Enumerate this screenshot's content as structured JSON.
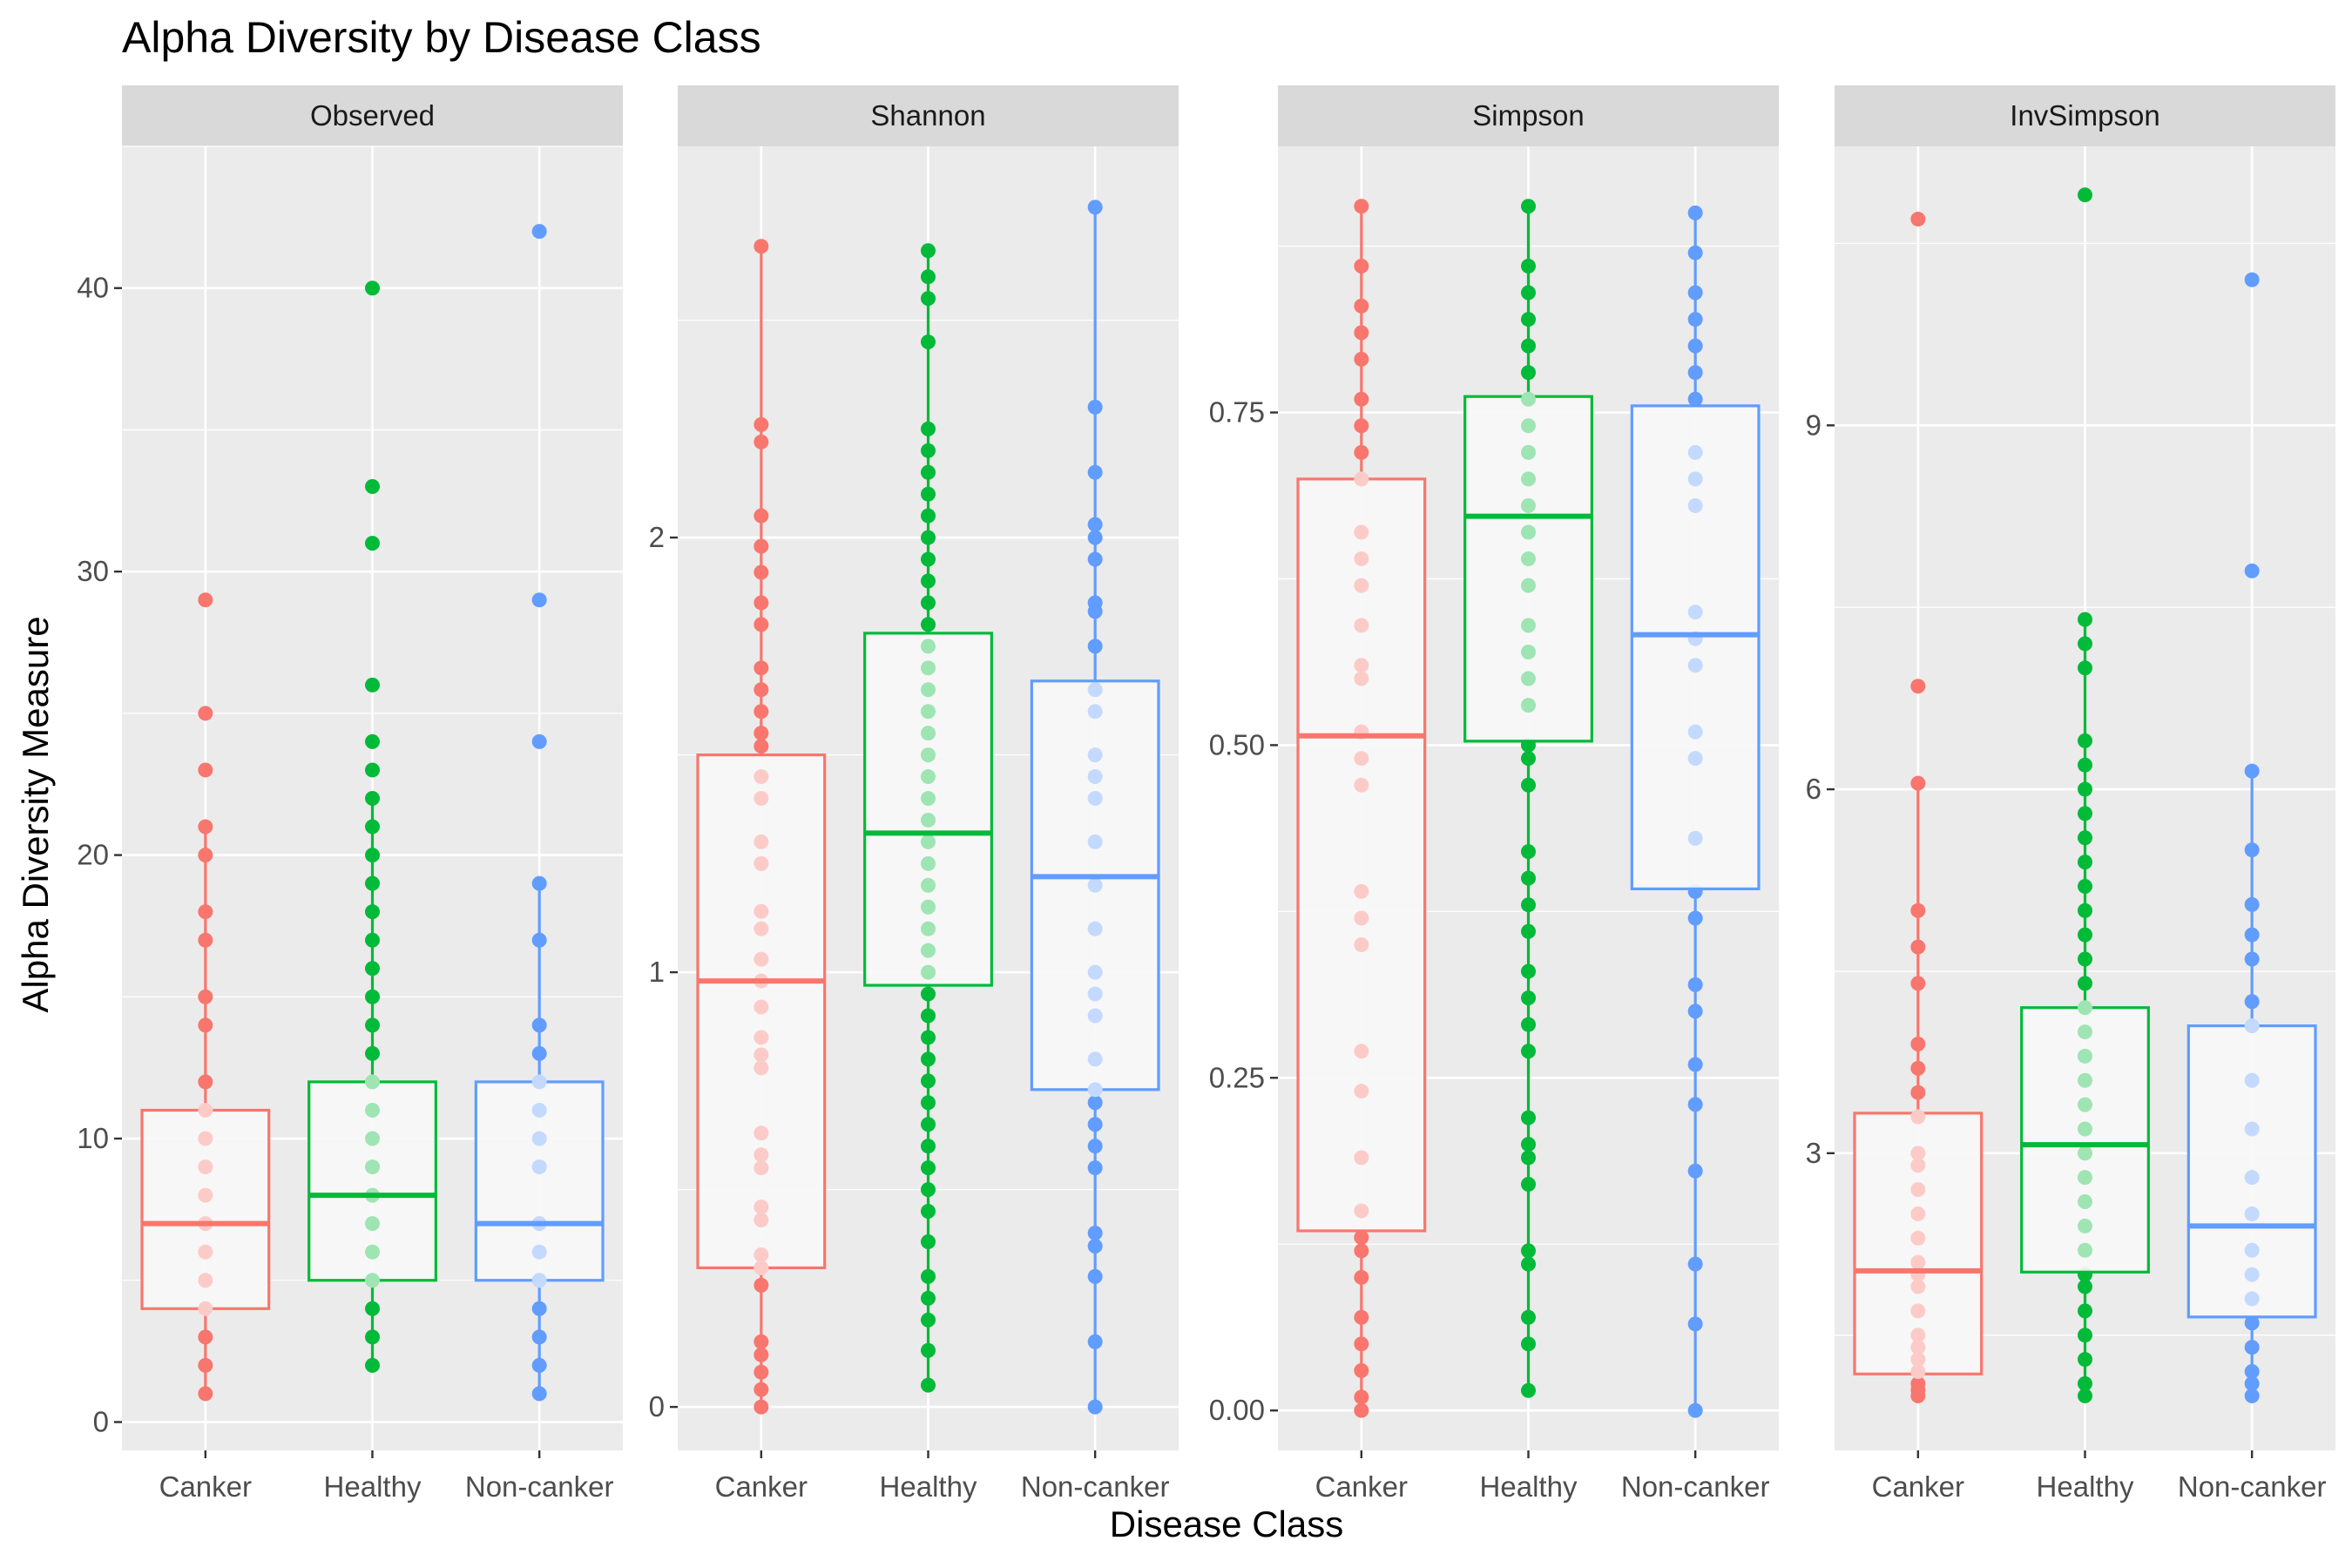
{
  "title": "Alpha Diversity by Disease Class",
  "xlabel": "Disease Class",
  "ylabel": "Alpha Diversity Measure",
  "colors": {
    "Canker": "#F8766D",
    "Healthy": "#00BA38",
    "Non-canker": "#619CFF",
    "panel_background": "#EBEBEB",
    "strip_background": "#D9D9D9",
    "box_fill": "#F7F7F7"
  },
  "chart_data": [
    {
      "type": "boxplot",
      "panel": "Observed",
      "categories": [
        "Canker",
        "Healthy",
        "Non-canker"
      ],
      "ylim": [
        -1,
        45
      ],
      "y_ticks": [
        0,
        10,
        20,
        30,
        40
      ],
      "y_tick_labels": [
        "0",
        "10",
        "20",
        "30",
        "40"
      ],
      "grid": true,
      "series": [
        {
          "name": "Canker",
          "q1": 4,
          "median": 7,
          "q3": 11,
          "whisker_low": 1,
          "whisker_high": 21,
          "points": [
            1,
            2,
            3,
            4,
            5,
            6,
            7,
            8,
            9,
            10,
            11,
            12,
            14,
            15,
            17,
            18,
            20,
            21,
            23,
            25,
            29
          ]
        },
        {
          "name": "Healthy",
          "q1": 5,
          "median": 8,
          "q3": 12,
          "whisker_low": 2,
          "whisker_high": 22,
          "points": [
            2,
            3,
            4,
            5,
            6,
            7,
            8,
            9,
            10,
            11,
            12,
            13,
            14,
            15,
            16,
            17,
            18,
            19,
            20,
            21,
            22,
            23,
            24,
            26,
            31,
            33,
            40
          ]
        },
        {
          "name": "Non-canker",
          "q1": 5,
          "median": 7,
          "q3": 12,
          "whisker_low": 1,
          "whisker_high": 19,
          "points": [
            1,
            2,
            3,
            4,
            5,
            6,
            7,
            9,
            10,
            11,
            12,
            13,
            14,
            17,
            19,
            24,
            29,
            42
          ]
        }
      ]
    },
    {
      "type": "boxplot",
      "panel": "Shannon",
      "categories": [
        "Canker",
        "Healthy",
        "Non-canker"
      ],
      "ylim": [
        -0.1,
        2.9
      ],
      "y_ticks": [
        0,
        1,
        2
      ],
      "y_tick_labels": [
        "0",
        "1",
        "2"
      ],
      "grid": true,
      "series": [
        {
          "name": "Canker",
          "q1": 0.32,
          "median": 0.98,
          "q3": 1.5,
          "whisker_low": 0.0,
          "whisker_high": 2.67,
          "points": [
            0.0,
            0.04,
            0.08,
            0.12,
            0.15,
            0.28,
            0.32,
            0.35,
            0.43,
            0.46,
            0.55,
            0.58,
            0.63,
            0.78,
            0.81,
            0.85,
            0.92,
            0.98,
            1.03,
            1.1,
            1.14,
            1.25,
            1.3,
            1.4,
            1.45,
            1.52,
            1.55,
            1.6,
            1.65,
            1.7,
            1.8,
            1.85,
            1.92,
            1.98,
            2.05,
            2.22,
            2.26,
            2.67
          ]
        },
        {
          "name": "Healthy",
          "q1": 0.97,
          "median": 1.32,
          "q3": 1.78,
          "whisker_low": 0.05,
          "whisker_high": 2.66,
          "points": [
            0.05,
            0.13,
            0.2,
            0.25,
            0.3,
            0.38,
            0.45,
            0.5,
            0.55,
            0.6,
            0.65,
            0.7,
            0.75,
            0.8,
            0.85,
            0.9,
            0.95,
            1.0,
            1.05,
            1.1,
            1.15,
            1.2,
            1.25,
            1.3,
            1.35,
            1.4,
            1.45,
            1.5,
            1.55,
            1.6,
            1.65,
            1.7,
            1.75,
            1.8,
            1.85,
            1.9,
            1.95,
            2.0,
            2.05,
            2.1,
            2.15,
            2.2,
            2.25,
            2.45,
            2.55,
            2.6,
            2.66
          ]
        },
        {
          "name": "Non-canker",
          "q1": 0.73,
          "median": 1.22,
          "q3": 1.67,
          "whisker_low": 0.0,
          "whisker_high": 2.76,
          "points": [
            0.0,
            0.15,
            0.3,
            0.37,
            0.4,
            0.55,
            0.6,
            0.65,
            0.7,
            0.73,
            0.8,
            0.9,
            0.95,
            1.0,
            1.1,
            1.2,
            1.3,
            1.4,
            1.45,
            1.5,
            1.6,
            1.65,
            1.75,
            1.83,
            1.85,
            1.95,
            2.0,
            2.03,
            2.15,
            2.3,
            2.76
          ]
        }
      ]
    },
    {
      "type": "boxplot",
      "panel": "Simpson",
      "categories": [
        "Canker",
        "Healthy",
        "Non-canker"
      ],
      "ylim": [
        -0.03,
        0.95
      ],
      "y_ticks": [
        0.0,
        0.25,
        0.5,
        0.75
      ],
      "y_tick_labels": [
        "0.00",
        "0.25",
        "0.50",
        "0.75"
      ],
      "grid": true,
      "series": [
        {
          "name": "Canker",
          "q1": 0.135,
          "median": 0.507,
          "q3": 0.7,
          "whisker_low": 0.0,
          "whisker_high": 0.905,
          "points": [
            0.0,
            0.01,
            0.03,
            0.05,
            0.07,
            0.1,
            0.12,
            0.13,
            0.15,
            0.19,
            0.24,
            0.27,
            0.35,
            0.37,
            0.39,
            0.47,
            0.49,
            0.51,
            0.55,
            0.56,
            0.59,
            0.62,
            0.64,
            0.66,
            0.7,
            0.72,
            0.74,
            0.76,
            0.79,
            0.81,
            0.83,
            0.86,
            0.905
          ]
        },
        {
          "name": "Healthy",
          "q1": 0.503,
          "median": 0.672,
          "q3": 0.762,
          "whisker_low": 0.015,
          "whisker_high": 0.905,
          "points": [
            0.015,
            0.05,
            0.07,
            0.11,
            0.12,
            0.17,
            0.19,
            0.2,
            0.22,
            0.27,
            0.29,
            0.31,
            0.33,
            0.36,
            0.38,
            0.4,
            0.42,
            0.47,
            0.49,
            0.5,
            0.53,
            0.55,
            0.57,
            0.59,
            0.62,
            0.64,
            0.66,
            0.68,
            0.7,
            0.72,
            0.74,
            0.76,
            0.78,
            0.8,
            0.82,
            0.84,
            0.86,
            0.905
          ]
        },
        {
          "name": "Non-canker",
          "q1": 0.392,
          "median": 0.583,
          "q3": 0.755,
          "whisker_low": 0.0,
          "whisker_high": 0.9,
          "points": [
            0.0,
            0.065,
            0.11,
            0.18,
            0.23,
            0.26,
            0.3,
            0.32,
            0.37,
            0.39,
            0.43,
            0.49,
            0.51,
            0.56,
            0.58,
            0.6,
            0.68,
            0.7,
            0.72,
            0.76,
            0.78,
            0.8,
            0.82,
            0.84,
            0.87,
            0.9
          ]
        }
      ]
    },
    {
      "type": "boxplot",
      "panel": "InvSimpson",
      "categories": [
        "Canker",
        "Healthy",
        "Non-canker"
      ],
      "ylim": [
        0.55,
        11.3
      ],
      "y_ticks": [
        3,
        6,
        9
      ],
      "y_tick_labels": [
        "3",
        "6",
        "9"
      ],
      "grid": true,
      "series": [
        {
          "name": "Canker",
          "q1": 1.18,
          "median": 2.03,
          "q3": 3.33,
          "whisker_low": 1.0,
          "whisker_high": 6.05,
          "points": [
            1.0,
            1.05,
            1.1,
            1.2,
            1.3,
            1.4,
            1.5,
            1.7,
            1.9,
            2.0,
            2.1,
            2.3,
            2.5,
            2.7,
            2.9,
            3.0,
            3.3,
            3.5,
            3.7,
            3.9,
            4.4,
            4.7,
            5.0,
            6.05,
            6.85,
            10.7
          ]
        },
        {
          "name": "Healthy",
          "q1": 2.02,
          "median": 3.07,
          "q3": 4.2,
          "whisker_low": 1.0,
          "whisker_high": 7.4,
          "points": [
            1.0,
            1.1,
            1.3,
            1.5,
            1.7,
            1.9,
            2.0,
            2.2,
            2.4,
            2.6,
            2.8,
            3.0,
            3.2,
            3.4,
            3.6,
            3.8,
            4.0,
            4.2,
            4.4,
            4.6,
            4.8,
            5.0,
            5.2,
            5.4,
            5.6,
            5.8,
            6.0,
            6.2,
            6.4,
            7.0,
            7.2,
            7.4,
            10.9
          ]
        },
        {
          "name": "Non-canker",
          "q1": 1.65,
          "median": 2.4,
          "q3": 4.05,
          "whisker_low": 1.0,
          "whisker_high": 6.15,
          "points": [
            1.0,
            1.1,
            1.2,
            1.4,
            1.6,
            1.8,
            2.0,
            2.2,
            2.5,
            2.8,
            3.2,
            3.6,
            4.05,
            4.25,
            4.6,
            4.8,
            5.05,
            5.5,
            6.15,
            7.8,
            10.2
          ]
        }
      ]
    }
  ]
}
